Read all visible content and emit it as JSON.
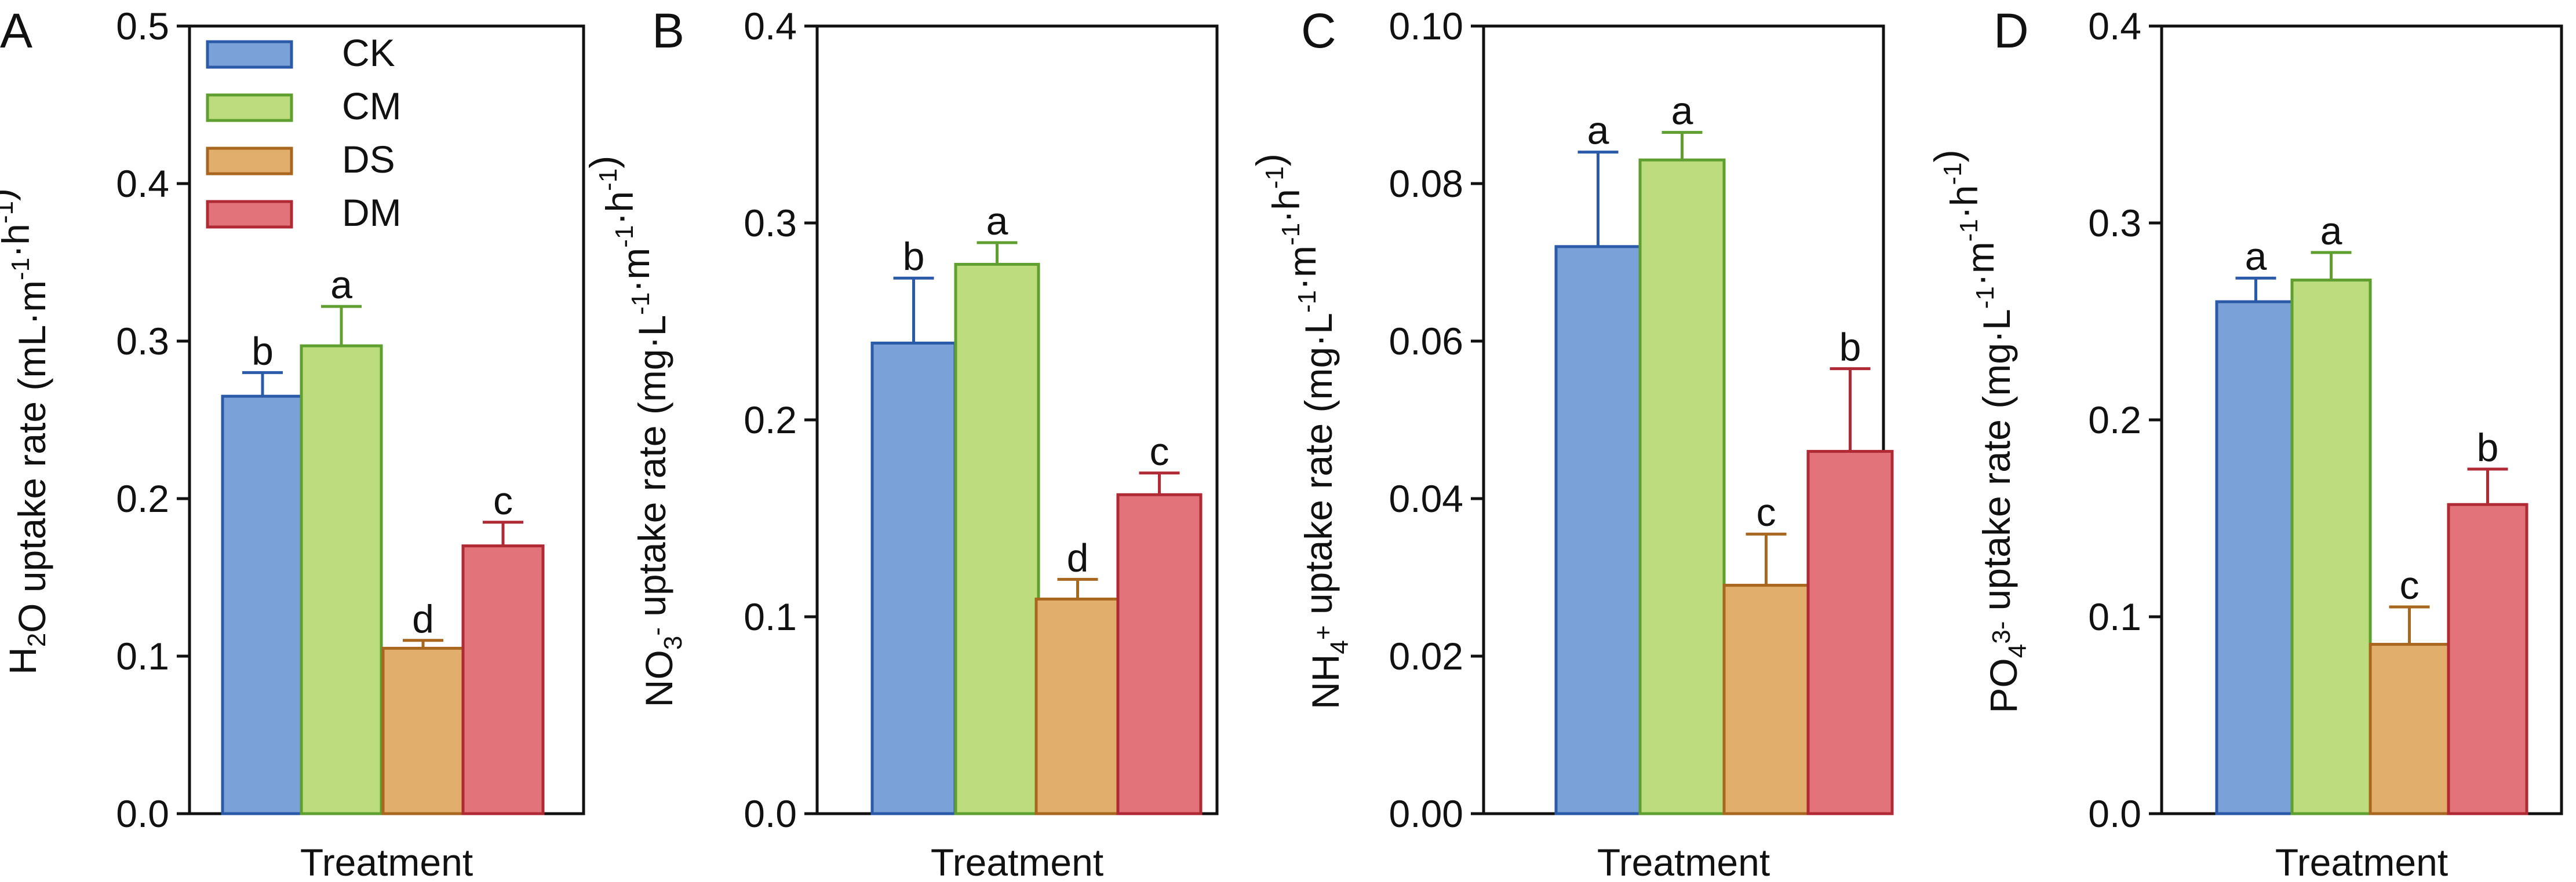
{
  "chart_data": [
    {
      "type": "bar",
      "panel": "A",
      "xlabel": "Treatment",
      "ylabel": "H2O uptake rate (mL·m-1·h-1)",
      "ylabel_parts": [
        "H",
        "2",
        "O uptake rate (mL·m",
        "-1",
        "·h",
        "-1",
        ")"
      ],
      "ylim": [
        0,
        0.5
      ],
      "yticks": [
        "0.0",
        "0.1",
        "0.2",
        "0.3",
        "0.4",
        "0.5"
      ],
      "categories": [
        "CK",
        "CM",
        "DS",
        "DM"
      ],
      "values": [
        0.265,
        0.297,
        0.105,
        0.17
      ],
      "errors": [
        0.015,
        0.025,
        0.005,
        0.015
      ],
      "significance": [
        "b",
        "a",
        "d",
        "c"
      ]
    },
    {
      "type": "bar",
      "panel": "B",
      "xlabel": "Treatment",
      "ylabel": "NO3- uptake rate (mg·L-1·m-1·h-1)",
      "ylabel_parts": [
        "NO",
        "3",
        "-",
        " uptake rate (mg·L",
        "-1",
        "·m",
        "-1",
        "·h",
        "-1",
        ")"
      ],
      "ylim": [
        0,
        0.4
      ],
      "yticks": [
        "0.0",
        "0.1",
        "0.2",
        "0.3",
        "0.4"
      ],
      "categories": [
        "CK",
        "CM",
        "DS",
        "DM"
      ],
      "values": [
        0.239,
        0.279,
        0.109,
        0.162
      ],
      "errors": [
        0.033,
        0.011,
        0.01,
        0.011
      ],
      "significance": [
        "b",
        "a",
        "d",
        "c"
      ]
    },
    {
      "type": "bar",
      "panel": "C",
      "xlabel": "Treatment",
      "ylabel": "NH4+ uptake rate (mg·L-1·m-1·h-1)",
      "ylabel_parts": [
        "NH",
        "4",
        "+",
        " uptake rate (mg·L",
        "-1",
        "·m",
        "-1",
        "·h",
        "-1",
        ")"
      ],
      "ylim": [
        0,
        0.1
      ],
      "yticks": [
        "0.00",
        "0.02",
        "0.04",
        "0.06",
        "0.08",
        "0.10"
      ],
      "categories": [
        "CK",
        "CM",
        "DS",
        "DM"
      ],
      "values": [
        0.072,
        0.083,
        0.029,
        0.046
      ],
      "errors": [
        0.012,
        0.0035,
        0.0065,
        0.0105
      ],
      "significance": [
        "a",
        "a",
        "c",
        "b"
      ]
    },
    {
      "type": "bar",
      "panel": "D",
      "xlabel": "Treatment",
      "ylabel": "PO43- uptake rate (mg·L-1·m-1·h-1)",
      "ylabel_parts": [
        "PO",
        "4",
        "3-",
        " uptake rate (mg·L",
        "-1",
        "·m",
        "-1",
        "·h",
        "-1",
        ")"
      ],
      "ylim": [
        0,
        0.4
      ],
      "yticks": [
        "0.0",
        "0.1",
        "0.2",
        "0.3",
        "0.4"
      ],
      "categories": [
        "CK",
        "CM",
        "DS",
        "DM"
      ],
      "values": [
        0.26,
        0.271,
        0.086,
        0.157
      ],
      "errors": [
        0.012,
        0.014,
        0.019,
        0.018
      ],
      "significance": [
        "a",
        "a",
        "c",
        "b"
      ]
    }
  ],
  "legend": {
    "placement": "top-left of panel A",
    "items": [
      {
        "label": "CK",
        "fill": "#7aa1d8",
        "stroke": "#2b5aa8"
      },
      {
        "label": "CM",
        "fill": "#bcdc7e",
        "stroke": "#5f9f2f"
      },
      {
        "label": "DS",
        "fill": "#e1ae6c",
        "stroke": "#a8661f"
      },
      {
        "label": "DM",
        "fill": "#e2737a",
        "stroke": "#b02a35"
      }
    ]
  }
}
